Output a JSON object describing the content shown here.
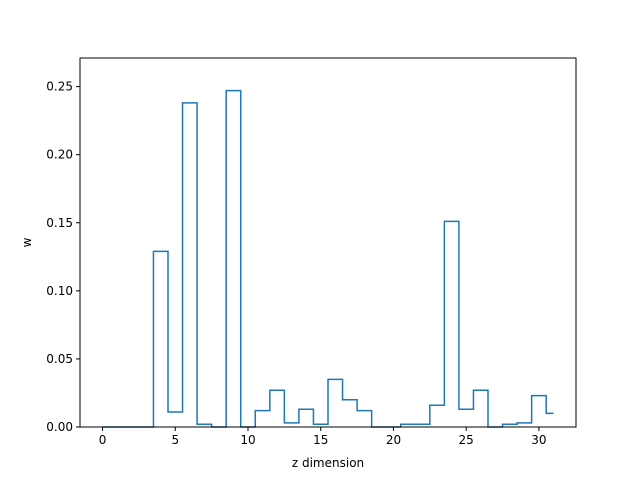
{
  "chart_data": {
    "type": "line",
    "drawstyle": "steps-mid",
    "title": "",
    "xlabel": "z dimension",
    "ylabel": "w",
    "xlim": [
      -1.55,
      32.55
    ],
    "ylim": [
      0,
      0.271
    ],
    "xticks": [
      0,
      5,
      10,
      15,
      20,
      25,
      30
    ],
    "xtick_labels": [
      "0",
      "5",
      "10",
      "15",
      "20",
      "25",
      "30"
    ],
    "yticks": [
      0.0,
      0.05,
      0.1,
      0.15,
      0.2,
      0.25
    ],
    "ytick_labels": [
      "0.00",
      "0.05",
      "0.10",
      "0.15",
      "0.20",
      "0.25"
    ],
    "grid": false,
    "series": [
      {
        "color": "#1f77b4",
        "x": [
          0,
          1,
          2,
          3,
          4,
          5,
          6,
          7,
          8,
          9,
          10,
          11,
          12,
          13,
          14,
          15,
          16,
          17,
          18,
          19,
          20,
          21,
          22,
          23,
          24,
          25,
          26,
          27,
          28,
          29,
          30,
          31
        ],
        "y": [
          0,
          0,
          0,
          0,
          0.129,
          0.011,
          0.238,
          0.002,
          0,
          0.247,
          0,
          0.012,
          0.027,
          0.003,
          0.013,
          0.002,
          0.035,
          0.02,
          0.012,
          0,
          0,
          0.002,
          0.002,
          0.016,
          0.151,
          0.013,
          0.027,
          0,
          0.002,
          0.003,
          0.023,
          0.01
        ]
      }
    ]
  }
}
